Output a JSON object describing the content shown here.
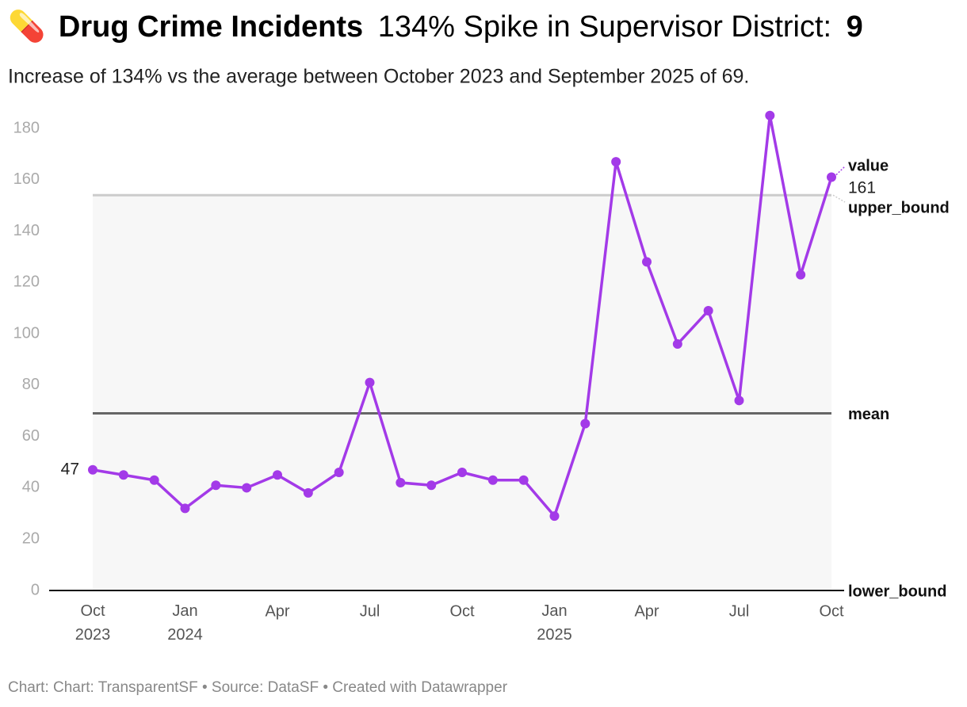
{
  "chart_data": {
    "type": "line",
    "title": {
      "icon": "💊",
      "bold": "Drug Crime Incidents",
      "text": "134% Spike in Supervisor District:",
      "district": "9"
    },
    "subtitle": "Increase of 134% vs the average between October 2023 and September 2025 of 69.",
    "footer": "Chart: Chart: TransparentSF • Source: DataSF • Created with Datawrapper",
    "categories": [
      "Oct 2023",
      null,
      null,
      "Jan 2024",
      null,
      null,
      "Apr",
      null,
      null,
      "Jul",
      null,
      null,
      "Oct",
      null,
      null,
      "Jan 2025",
      null,
      null,
      "Apr",
      null,
      null,
      "Jul",
      null,
      null,
      "Oct"
    ],
    "series": [
      {
        "name": "value",
        "color": "#a33ae8",
        "values": [
          47,
          45,
          43,
          32,
          41,
          40,
          45,
          38,
          46,
          81,
          42,
          41,
          46,
          43,
          43,
          29,
          65,
          167,
          128,
          96,
          109,
          74,
          185,
          123,
          161
        ]
      }
    ],
    "reference_lines": [
      {
        "name": "upper_bound",
        "value": 154,
        "color": "#cccccc"
      },
      {
        "name": "mean",
        "value": 69,
        "color": "#666666"
      },
      {
        "name": "lower_bound",
        "value": 0,
        "color": "#111111"
      }
    ],
    "band_color": "#f7f7f7",
    "ylim": [
      0,
      190
    ],
    "yticks": [
      0,
      20,
      40,
      60,
      80,
      100,
      120,
      140,
      160,
      180
    ],
    "grid": false
  }
}
